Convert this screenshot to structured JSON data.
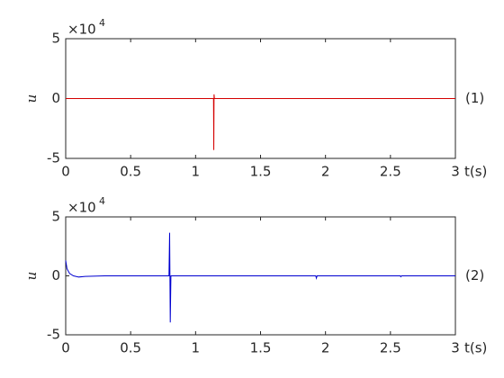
{
  "chart_data": [
    {
      "type": "line",
      "ylabel": "u",
      "exponent_base": "×10",
      "exponent_power": "4",
      "panel_label": "(1)",
      "xlabel": "t(s)",
      "xlim": [
        0,
        3
      ],
      "xticks": [
        0,
        0.5,
        1,
        1.5,
        2,
        2.5,
        3
      ],
      "ylim": [
        -5,
        5
      ],
      "yticks": [
        5,
        0,
        -5
      ],
      "color": "#d40000",
      "x": [
        0,
        1.138,
        1.14,
        1.142,
        1.145,
        3
      ],
      "values": [
        0,
        0,
        -4.3,
        0.35,
        0,
        0
      ]
    },
    {
      "type": "line",
      "ylabel": "u",
      "exponent_base": "×10",
      "exponent_power": "4",
      "panel_label": "(2)",
      "xlabel": "t(s)",
      "xlim": [
        0,
        3
      ],
      "xticks": [
        0,
        0.5,
        1,
        1.5,
        2,
        2.5,
        3
      ],
      "ylim": [
        -5,
        5
      ],
      "yticks": [
        5,
        0,
        -5
      ],
      "color": "#0000d0",
      "x": [
        0,
        0.01,
        0.03,
        0.06,
        0.1,
        0.15,
        0.3,
        0.795,
        0.8,
        0.805,
        0.81,
        1.925,
        1.93,
        1.935,
        2.575,
        2.58,
        2.585,
        3
      ],
      "values": [
        1.3,
        0.6,
        0.2,
        0,
        -0.1,
        -0.05,
        0,
        0,
        3.65,
        -3.95,
        0,
        0,
        -0.2,
        0,
        0,
        -0.08,
        0,
        0
      ]
    }
  ]
}
